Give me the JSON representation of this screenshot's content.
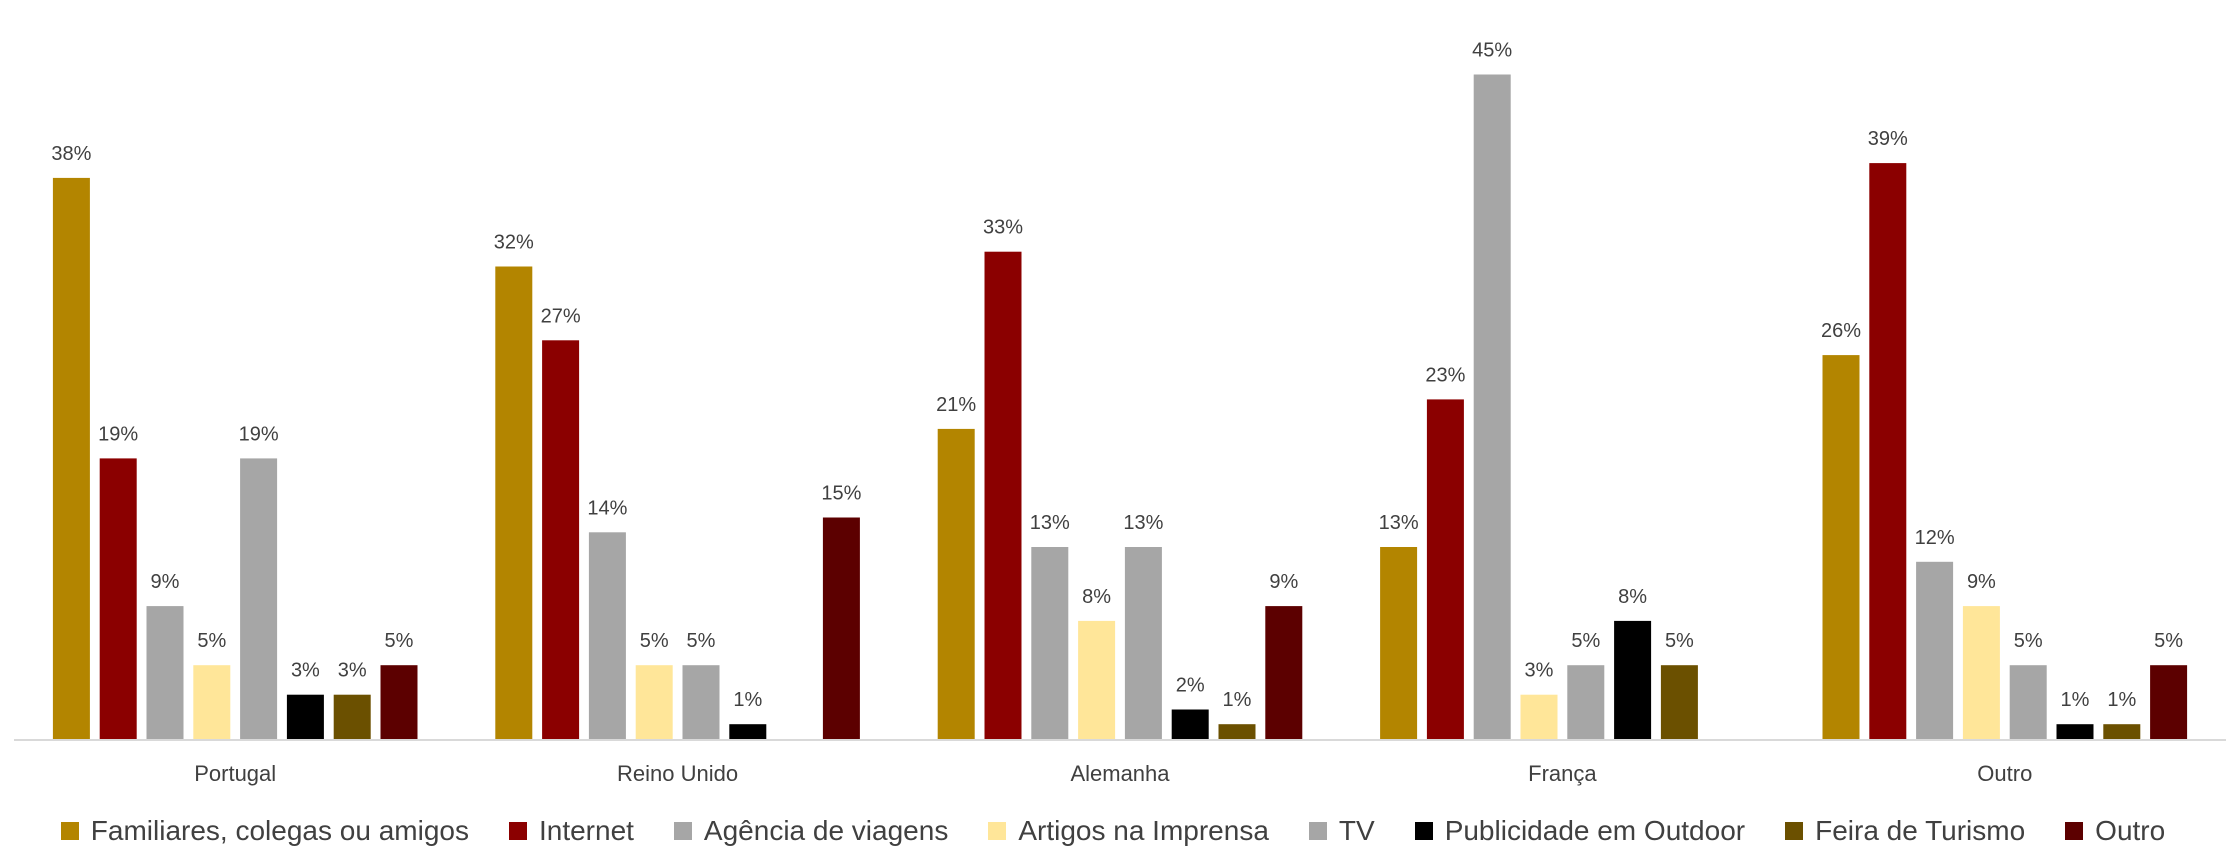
{
  "chart_data": {
    "type": "bar",
    "categories": [
      "Portugal",
      "Reino Unido",
      "Alemanha",
      "França",
      "Outro"
    ],
    "series": [
      {
        "name": "Familiares, colegas ou amigos",
        "color": "#B38500",
        "values": [
          38,
          32,
          21,
          13,
          26
        ]
      },
      {
        "name": "Internet",
        "color": "#8B0000",
        "values": [
          19,
          27,
          33,
          23,
          39
        ]
      },
      {
        "name": "Agência de viagens",
        "color": "#A6A6A6",
        "values": [
          9,
          14,
          13,
          45,
          12
        ]
      },
      {
        "name": "Artigos na Imprensa",
        "color": "#FFE699",
        "values": [
          5,
          5,
          8,
          3,
          9
        ]
      },
      {
        "name": "TV",
        "color": "#A6A6A6",
        "values": [
          19,
          5,
          13,
          5,
          5
        ]
      },
      {
        "name": "Publicidade em Outdoor",
        "color": "#000000",
        "values": [
          3,
          1,
          2,
          8,
          1
        ]
      },
      {
        "name": "Feira de Turismo",
        "color": "#6B5000",
        "values": [
          3,
          null,
          1,
          5,
          1
        ]
      },
      {
        "name": "Outro",
        "color": "#5C0000",
        "values": [
          5,
          15,
          9,
          null,
          5
        ]
      }
    ],
    "value_suffix": "%",
    "ylim": [
      0,
      47
    ],
    "legend_position": "bottom",
    "grid": false
  }
}
